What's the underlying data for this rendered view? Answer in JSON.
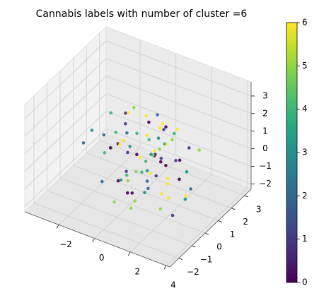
{
  "chart_data": {
    "type": "scatter3d",
    "title": "Cannabis labels with number of cluster =6",
    "colormap": "viridis",
    "xlim": [
      -3.9,
      4.2
    ],
    "xticks": [
      -2,
      0,
      2,
      4
    ],
    "ylim": [
      -2.7,
      3.5
    ],
    "yticks": [
      -2,
      -1,
      0,
      1,
      2,
      3
    ],
    "zlim": [
      -2.3,
      3.8
    ],
    "zticks": [
      -2,
      -1,
      0,
      1,
      2,
      3
    ],
    "clim": [
      0,
      6
    ],
    "cticks": [
      0,
      1,
      2,
      3,
      4,
      5,
      6
    ],
    "grid": true,
    "x": [
      0.2,
      -0.5,
      1.1,
      0.8,
      -1.2,
      0.5,
      1.6,
      -0.3,
      0.9,
      2.1,
      -1.8,
      0.0,
      1.3,
      0.4,
      -0.8,
      2.5,
      0.7,
      -0.1,
      1.9,
      -1.5,
      0.3,
      1.0,
      -0.6,
      2.8,
      0.6,
      -2.2,
      1.4,
      0.1,
      -0.9,
      1.7,
      0.9,
      -0.4,
      2.3,
      0.2,
      -1.1,
      1.2,
      0.5,
      3.1,
      -0.2,
      0.8,
      1.5,
      -1.4,
      0.0,
      2.0,
      0.6,
      -0.7,
      1.1,
      -2.6,
      0.4,
      1.8,
      0.3,
      -0.3,
      2.6,
      0.7,
      -1.0,
      1.3,
      0.1,
      -1.9,
      0.9,
      2.2,
      -0.5,
      1.6,
      0.4,
      -1.3,
      0.8,
      3.4,
      0.2,
      -0.8,
      1.0,
      1.9,
      -2.0,
      0.5,
      1.4,
      -0.1,
      2.4,
      0.6,
      -1.6,
      1.1,
      0.0,
      2.9
    ],
    "y": [
      0.5,
      1.2,
      -0.3,
      0.9,
      0.2,
      1.8,
      -0.8,
      0.4,
      1.5,
      0.0,
      1.0,
      -1.2,
      0.6,
      2.2,
      -0.4,
      0.8,
      1.3,
      -0.1,
      0.3,
      1.7,
      -0.6,
      2.0,
      0.7,
      -1.5,
      1.1,
      0.1,
      0.5,
      2.6,
      -0.9,
      0.9,
      1.4,
      0.2,
      -0.2,
      1.9,
      0.6,
      -1.8,
      1.2,
      0.4,
      0.8,
      2.4,
      -0.5,
      1.0,
      0.3,
      1.6,
      -1.1,
      0.7,
      2.1,
      0.0,
      1.3,
      -0.7,
      0.9,
      1.7,
      -0.3,
      0.5,
      2.8,
      -1.4,
      1.1,
      0.6,
      -0.1,
      1.5,
      0.2,
      -2.1,
      1.8,
      0.7,
      1.0,
      -0.4,
      2.3,
      0.4,
      -0.9,
      1.2,
      0.8,
      1.6,
      -0.6,
      0.3,
      2.0,
      -1.0,
      1.4,
      0.1,
      0.9,
      -0.2
    ],
    "z": [
      0.1,
      -0.5,
      0.8,
      -1.0,
      0.3,
      1.2,
      -0.2,
      0.6,
      -0.8,
      0.0,
      1.5,
      -1.3,
      0.4,
      -0.3,
      0.9,
      -1.6,
      0.2,
      1.8,
      -0.6,
      0.5,
      -1.1,
      0.7,
      2.2,
      -0.4,
      0.0,
      1.0,
      -1.5,
      0.3,
      -0.7,
      1.4,
      0.5,
      2.6,
      -0.9,
      0.2,
      -1.8,
      0.8,
      0.1,
      -0.5,
      1.1,
      -1.2,
      0.4,
      -0.1,
      3.0,
      -0.8,
      0.6,
      -1.4,
      0.9,
      0.2,
      -0.3,
      1.7,
      -0.9,
      0.3,
      -1.7,
      1.3,
      0.0,
      -0.6,
      2.0,
      0.5,
      -1.2,
      0.7,
      1.0,
      -0.4,
      -1.0,
      0.8,
      2.4,
      -0.2,
      0.4,
      -1.5,
      0.6,
      0.1,
      -0.7,
      1.1,
      0.0,
      -1.9,
      0.3,
      1.6,
      -0.5,
      0.9,
      -1.1,
      0.4
    ],
    "c": [
      6,
      0,
      4,
      1,
      5,
      6,
      2,
      3,
      0,
      6,
      4,
      5,
      1,
      6,
      0,
      3,
      5,
      2,
      6,
      1,
      0,
      4,
      6,
      5,
      1,
      3,
      6,
      0,
      2,
      5,
      4,
      1,
      6,
      3,
      0,
      5,
      6,
      2,
      4,
      1,
      6,
      0,
      5,
      3,
      1,
      4,
      6,
      2,
      0,
      5,
      3,
      6,
      1,
      4,
      0,
      5,
      6,
      2,
      3,
      1,
      6,
      5,
      0,
      4,
      2,
      6,
      1,
      3,
      5,
      0,
      4,
      6,
      2,
      0,
      5,
      1,
      6,
      3,
      4,
      0
    ]
  }
}
